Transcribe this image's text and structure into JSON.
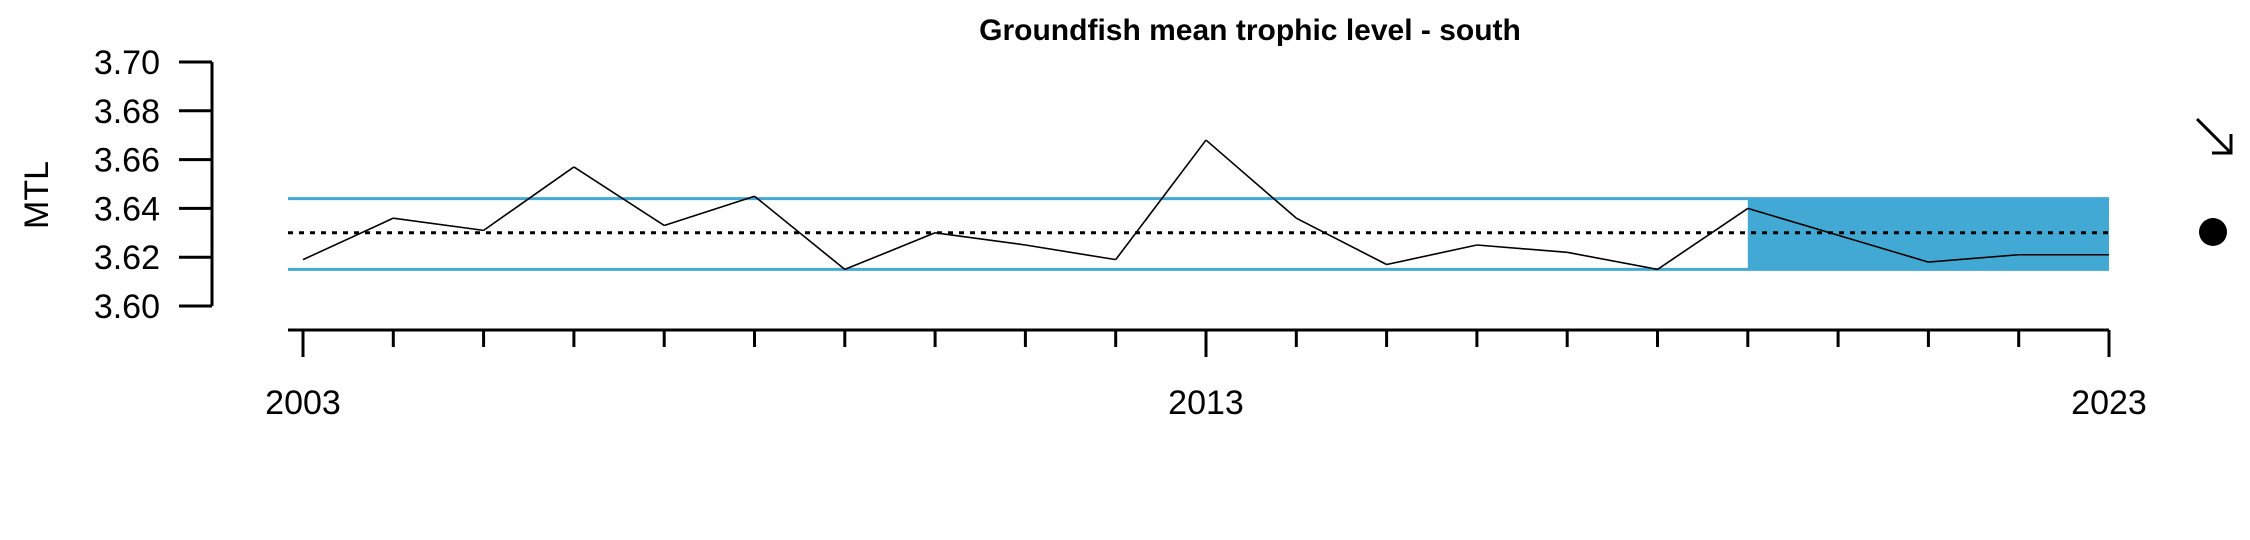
{
  "chart_data": {
    "type": "line",
    "title": "Groundfish mean trophic level - south",
    "xlabel": "",
    "ylabel": "MTL",
    "xlim": [
      2003,
      2023
    ],
    "ylim": [
      3.6,
      3.7
    ],
    "y_ticks": [
      "3.60",
      "3.62",
      "3.64",
      "3.66",
      "3.68",
      "3.70"
    ],
    "x_ticks_labeled": [
      "2003",
      "2013",
      "2023"
    ],
    "x_minor_ticks": [
      2003,
      2004,
      2005,
      2006,
      2007,
      2008,
      2009,
      2010,
      2011,
      2012,
      2013,
      2014,
      2015,
      2016,
      2017,
      2018,
      2019,
      2020,
      2021,
      2022,
      2023
    ],
    "series": [
      {
        "x": [
          2003,
          2004,
          2005,
          2006,
          2007,
          2008,
          2009,
          2010,
          2011,
          2012,
          2013,
          2014,
          2015,
          2016,
          2017,
          2018,
          2019,
          2020,
          2021,
          2022,
          2023
        ],
        "values": [
          3.619,
          3.636,
          3.631,
          3.657,
          3.633,
          3.645,
          3.615,
          3.63,
          3.625,
          3.619,
          3.668,
          3.636,
          3.617,
          3.625,
          3.622,
          3.615,
          3.64,
          3.629,
          3.618,
          3.621,
          3.621
        ],
        "color": "#000000"
      }
    ],
    "mean": 3.63,
    "sd_band": [
      3.615,
      3.644
    ],
    "highlight_x_range": [
      2019,
      2023
    ],
    "colors": {
      "band": "#41A9D4",
      "highlight": "#41A9D4",
      "line": "#000000",
      "mean": "#000000"
    },
    "indicators": {
      "trend": "arrow-down-right",
      "status": "dot"
    },
    "grid": false
  }
}
